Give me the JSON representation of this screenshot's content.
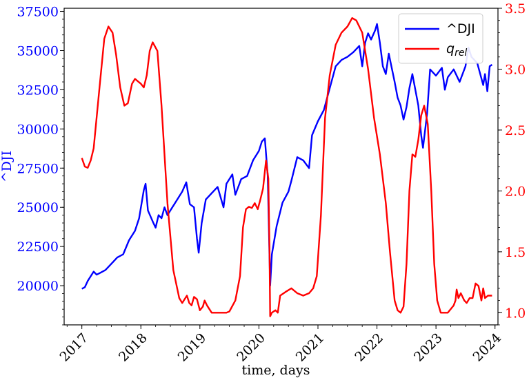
{
  "chart_data": {
    "type": "line",
    "xlabel": "time, days",
    "ylabel_left": "^DJI",
    "ylabel_right": "",
    "x_ticks": [
      "2017",
      "2018",
      "2019",
      "2020",
      "2021",
      "2022",
      "2023",
      "2024"
    ],
    "left_ticks": [
      "20000",
      "22500",
      "25000",
      "27500",
      "30000",
      "32500",
      "35000",
      "37500"
    ],
    "right_ticks": [
      "1.0",
      "1.5",
      "2.0",
      "2.5",
      "3.0",
      "3.5"
    ],
    "xlim": [
      2016.7,
      2024.05
    ],
    "ylim_left": [
      17500,
      37700
    ],
    "ylim_right": [
      0.9,
      3.5
    ],
    "legend": {
      "position": "top-right",
      "entries": [
        {
          "label": "^DJI",
          "color": "#0000ff"
        },
        {
          "label": "q",
          "subscript": "rel",
          "color": "#ff0000"
        }
      ]
    },
    "series": [
      {
        "name": "^DJI",
        "axis": "left",
        "color": "#0000ff",
        "points": [
          [
            2017.0,
            19800
          ],
          [
            2017.05,
            19900
          ],
          [
            2017.1,
            20300
          ],
          [
            2017.15,
            20600
          ],
          [
            2017.2,
            20900
          ],
          [
            2017.25,
            20700
          ],
          [
            2017.3,
            20800
          ],
          [
            2017.4,
            21000
          ],
          [
            2017.5,
            21400
          ],
          [
            2017.6,
            21800
          ],
          [
            2017.7,
            22000
          ],
          [
            2017.8,
            22900
          ],
          [
            2017.9,
            23500
          ],
          [
            2017.97,
            24300
          ],
          [
            2018.05,
            26100
          ],
          [
            2018.08,
            26500
          ],
          [
            2018.12,
            24800
          ],
          [
            2018.2,
            24100
          ],
          [
            2018.25,
            23700
          ],
          [
            2018.3,
            24500
          ],
          [
            2018.35,
            24300
          ],
          [
            2018.4,
            25000
          ],
          [
            2018.45,
            24500
          ],
          [
            2018.5,
            24800
          ],
          [
            2018.6,
            25400
          ],
          [
            2018.7,
            26000
          ],
          [
            2018.77,
            26600
          ],
          [
            2018.83,
            25200
          ],
          [
            2018.9,
            25000
          ],
          [
            2018.95,
            23000
          ],
          [
            2018.98,
            22100
          ],
          [
            2019.03,
            24000
          ],
          [
            2019.1,
            25500
          ],
          [
            2019.2,
            25900
          ],
          [
            2019.3,
            26300
          ],
          [
            2019.4,
            25000
          ],
          [
            2019.45,
            26500
          ],
          [
            2019.55,
            27100
          ],
          [
            2019.6,
            25800
          ],
          [
            2019.7,
            26800
          ],
          [
            2019.8,
            27000
          ],
          [
            2019.9,
            28000
          ],
          [
            2020.0,
            28600
          ],
          [
            2020.05,
            29200
          ],
          [
            2020.1,
            29400
          ],
          [
            2020.15,
            27000
          ],
          [
            2020.19,
            20000
          ],
          [
            2020.22,
            22000
          ],
          [
            2020.3,
            23800
          ],
          [
            2020.4,
            25300
          ],
          [
            2020.5,
            26000
          ],
          [
            2020.55,
            26700
          ],
          [
            2020.65,
            28200
          ],
          [
            2020.75,
            28000
          ],
          [
            2020.85,
            27500
          ],
          [
            2020.9,
            29600
          ],
          [
            2021.0,
            30500
          ],
          [
            2021.1,
            31200
          ],
          [
            2021.2,
            32600
          ],
          [
            2021.3,
            34000
          ],
          [
            2021.4,
            34400
          ],
          [
            2021.5,
            34600
          ],
          [
            2021.6,
            34900
          ],
          [
            2021.7,
            35300
          ],
          [
            2021.75,
            34000
          ],
          [
            2021.8,
            35500
          ],
          [
            2021.85,
            36100
          ],
          [
            2021.9,
            35700
          ],
          [
            2021.97,
            36300
          ],
          [
            2022.0,
            36700
          ],
          [
            2022.05,
            35500
          ],
          [
            2022.1,
            34000
          ],
          [
            2022.15,
            33500
          ],
          [
            2022.2,
            34800
          ],
          [
            2022.3,
            33000
          ],
          [
            2022.35,
            32000
          ],
          [
            2022.4,
            31500
          ],
          [
            2022.45,
            30600
          ],
          [
            2022.5,
            31400
          ],
          [
            2022.55,
            32600
          ],
          [
            2022.6,
            33500
          ],
          [
            2022.7,
            31500
          ],
          [
            2022.75,
            29600
          ],
          [
            2022.78,
            28800
          ],
          [
            2022.85,
            31000
          ],
          [
            2022.9,
            33800
          ],
          [
            2023.0,
            33400
          ],
          [
            2023.1,
            33900
          ],
          [
            2023.15,
            32500
          ],
          [
            2023.2,
            33300
          ],
          [
            2023.3,
            33800
          ],
          [
            2023.4,
            33000
          ],
          [
            2023.5,
            34000
          ],
          [
            2023.55,
            35200
          ],
          [
            2023.6,
            34600
          ],
          [
            2023.7,
            34200
          ],
          [
            2023.75,
            33500
          ],
          [
            2023.8,
            32800
          ],
          [
            2023.83,
            33500
          ],
          [
            2023.87,
            32400
          ],
          [
            2023.91,
            34000
          ],
          [
            2023.95,
            34100
          ]
        ]
      },
      {
        "name": "q_rel",
        "axis": "right",
        "color": "#ff0000",
        "points": [
          [
            2017.0,
            2.27
          ],
          [
            2017.05,
            2.2
          ],
          [
            2017.1,
            2.19
          ],
          [
            2017.15,
            2.25
          ],
          [
            2017.2,
            2.35
          ],
          [
            2017.3,
            2.85
          ],
          [
            2017.38,
            3.25
          ],
          [
            2017.45,
            3.35
          ],
          [
            2017.52,
            3.3
          ],
          [
            2017.58,
            3.12
          ],
          [
            2017.65,
            2.85
          ],
          [
            2017.72,
            2.7
          ],
          [
            2017.78,
            2.72
          ],
          [
            2017.85,
            2.88
          ],
          [
            2017.9,
            2.92
          ],
          [
            2017.95,
            2.9
          ],
          [
            2018.0,
            2.88
          ],
          [
            2018.05,
            2.85
          ],
          [
            2018.1,
            2.95
          ],
          [
            2018.15,
            3.15
          ],
          [
            2018.2,
            3.22
          ],
          [
            2018.28,
            3.15
          ],
          [
            2018.35,
            2.7
          ],
          [
            2018.45,
            1.9
          ],
          [
            2018.55,
            1.35
          ],
          [
            2018.65,
            1.12
          ],
          [
            2018.7,
            1.08
          ],
          [
            2018.78,
            1.14
          ],
          [
            2018.82,
            1.08
          ],
          [
            2018.86,
            1.06
          ],
          [
            2018.9,
            1.13
          ],
          [
            2018.95,
            1.11
          ],
          [
            2019.0,
            1.02
          ],
          [
            2019.05,
            1.05
          ],
          [
            2019.08,
            1.1
          ],
          [
            2019.12,
            1.06
          ],
          [
            2019.2,
            1.0
          ],
          [
            2019.3,
            1.0
          ],
          [
            2019.45,
            1.0
          ],
          [
            2019.5,
            1.01
          ],
          [
            2019.6,
            1.1
          ],
          [
            2019.68,
            1.3
          ],
          [
            2019.73,
            1.7
          ],
          [
            2019.78,
            1.85
          ],
          [
            2019.83,
            1.87
          ],
          [
            2019.88,
            1.86
          ],
          [
            2019.93,
            1.9
          ],
          [
            2019.98,
            1.85
          ],
          [
            2020.02,
            1.92
          ],
          [
            2020.07,
            2.02
          ],
          [
            2020.12,
            2.25
          ],
          [
            2020.16,
            2.1
          ],
          [
            2020.18,
            1.5
          ],
          [
            2020.19,
            0.97
          ],
          [
            2020.22,
            1.0
          ],
          [
            2020.28,
            1.02
          ],
          [
            2020.32,
            1.0
          ],
          [
            2020.36,
            1.14
          ],
          [
            2020.45,
            1.17
          ],
          [
            2020.55,
            1.2
          ],
          [
            2020.65,
            1.16
          ],
          [
            2020.75,
            1.14
          ],
          [
            2020.85,
            1.16
          ],
          [
            2020.92,
            1.2
          ],
          [
            2020.98,
            1.3
          ],
          [
            2021.05,
            1.8
          ],
          [
            2021.12,
            2.6
          ],
          [
            2021.2,
            2.95
          ],
          [
            2021.3,
            3.2
          ],
          [
            2021.4,
            3.3
          ],
          [
            2021.5,
            3.35
          ],
          [
            2021.58,
            3.42
          ],
          [
            2021.65,
            3.4
          ],
          [
            2021.75,
            3.3
          ],
          [
            2021.85,
            3.0
          ],
          [
            2021.95,
            2.6
          ],
          [
            2022.05,
            2.3
          ],
          [
            2022.15,
            1.9
          ],
          [
            2022.22,
            1.5
          ],
          [
            2022.3,
            1.1
          ],
          [
            2022.35,
            1.02
          ],
          [
            2022.4,
            1.0
          ],
          [
            2022.45,
            1.05
          ],
          [
            2022.5,
            1.4
          ],
          [
            2022.55,
            2.0
          ],
          [
            2022.6,
            2.3
          ],
          [
            2022.65,
            2.28
          ],
          [
            2022.7,
            2.42
          ],
          [
            2022.75,
            2.62
          ],
          [
            2022.8,
            2.7
          ],
          [
            2022.86,
            2.55
          ],
          [
            2022.92,
            2.0
          ],
          [
            2022.97,
            1.4
          ],
          [
            2023.02,
            1.1
          ],
          [
            2023.08,
            1.0
          ],
          [
            2023.2,
            1.0
          ],
          [
            2023.3,
            1.06
          ],
          [
            2023.33,
            1.1
          ],
          [
            2023.35,
            1.19
          ],
          [
            2023.38,
            1.12
          ],
          [
            2023.42,
            1.16
          ],
          [
            2023.48,
            1.1
          ],
          [
            2023.52,
            1.08
          ],
          [
            2023.57,
            1.12
          ],
          [
            2023.62,
            1.12
          ],
          [
            2023.67,
            1.24
          ],
          [
            2023.72,
            1.22
          ],
          [
            2023.77,
            1.1
          ],
          [
            2023.8,
            1.2
          ],
          [
            2023.83,
            1.12
          ],
          [
            2023.88,
            1.14
          ],
          [
            2023.95,
            1.14
          ]
        ]
      }
    ]
  }
}
